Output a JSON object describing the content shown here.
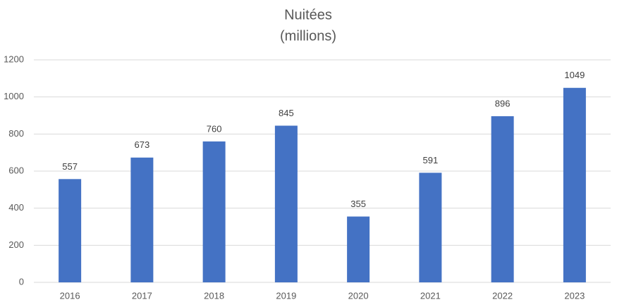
{
  "chart_data": {
    "type": "bar",
    "title": "Nuitées",
    "subtitle": "(millions)",
    "categories": [
      "2016",
      "2017",
      "2018",
      "2019",
      "2020",
      "2021",
      "2022",
      "2023"
    ],
    "values": [
      557,
      673,
      760,
      845,
      355,
      591,
      896,
      1049
    ],
    "color": "#4472c4",
    "ylim": [
      0,
      1200
    ],
    "yticks": [
      0,
      200,
      400,
      600,
      800,
      1000,
      1200
    ],
    "grid": true
  }
}
